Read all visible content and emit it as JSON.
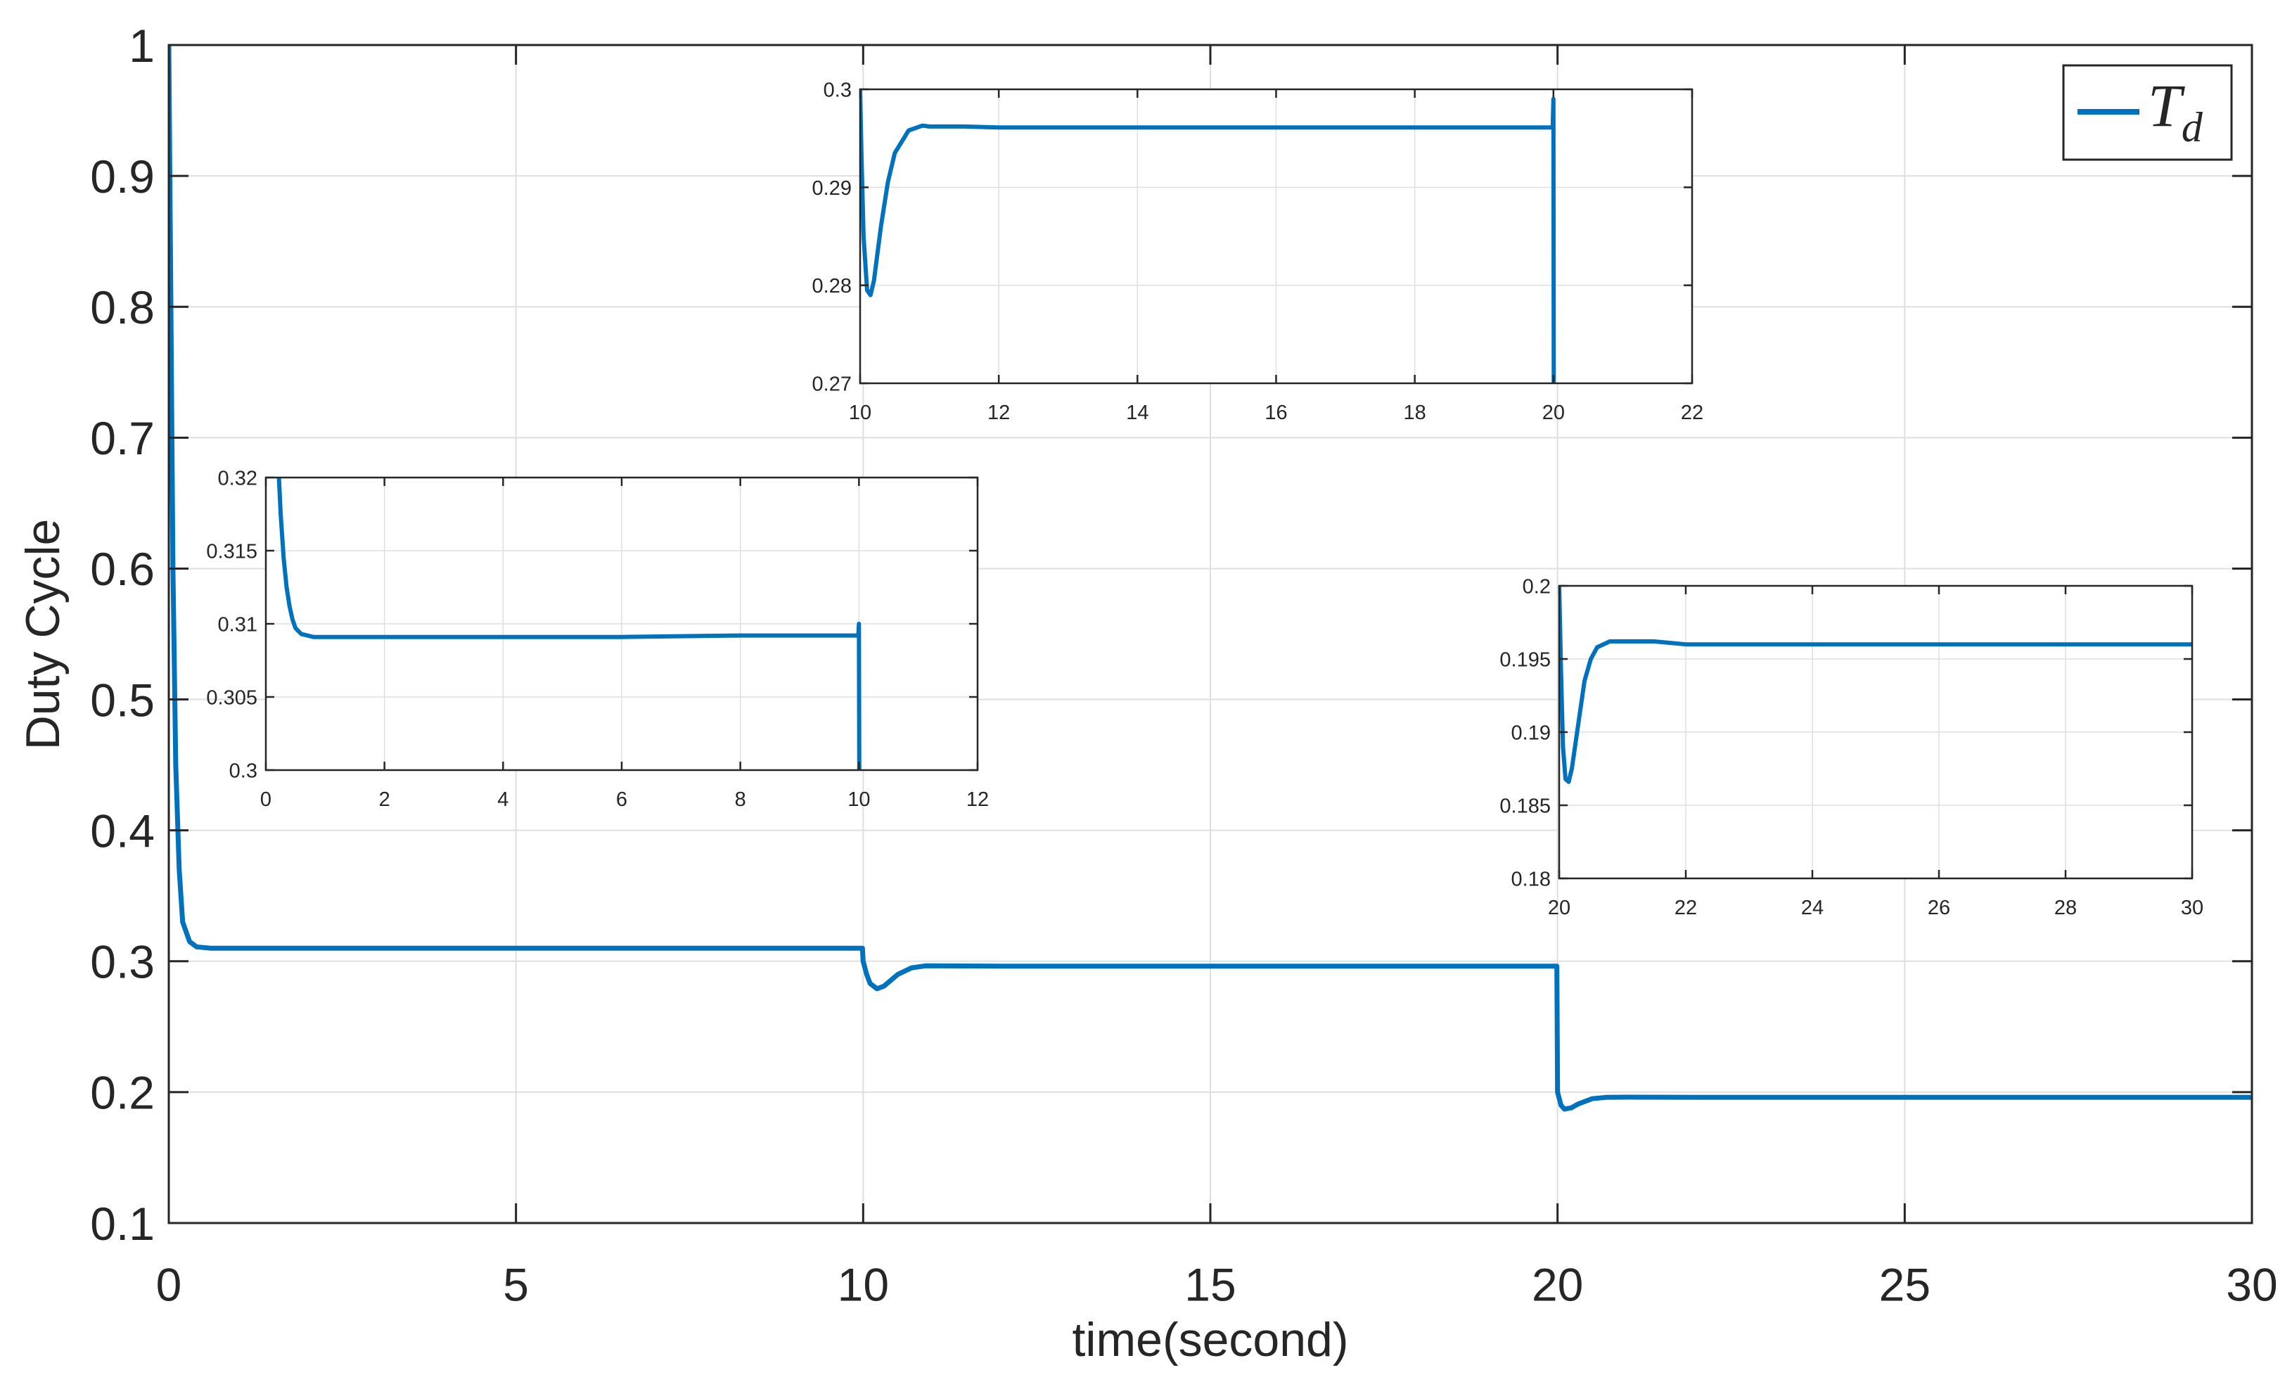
{
  "chart_data": [
    {
      "id": "main",
      "type": "line",
      "xlabel": "time(second)",
      "ylabel": "Duty Cycle",
      "xlim": [
        0,
        30
      ],
      "ylim": [
        0.1,
        1
      ],
      "xticks": [
        0,
        5,
        10,
        15,
        20,
        25,
        30
      ],
      "xtick_labels": [
        "0",
        "5",
        "10",
        "15",
        "20",
        "25",
        "30"
      ],
      "yticks": [
        0.1,
        0.2,
        0.3,
        0.4,
        0.5,
        0.6,
        0.7,
        0.8,
        0.9,
        1
      ],
      "ytick_labels": [
        "0.1",
        "0.2",
        "0.3",
        "0.4",
        "0.5",
        "0.6",
        "0.7",
        "0.8",
        "0.9",
        "1"
      ],
      "grid": true,
      "legend": {
        "placement": "top-right",
        "entries": [
          {
            "symbol": "T",
            "subscript": "d"
          }
        ]
      },
      "series": [
        {
          "color": "#0072BD",
          "x": [
            0,
            0.03,
            0.06,
            0.1,
            0.15,
            0.2,
            0.3,
            0.4,
            0.6,
            1,
            5,
            9.95,
            9.99,
            10,
            10.05,
            10.1,
            10.2,
            10.3,
            10.5,
            10.7,
            10.9,
            12,
            15,
            19.99,
            20,
            20.05,
            20.1,
            20.2,
            20.3,
            20.5,
            20.7,
            21,
            22,
            25,
            30
          ],
          "y": [
            1,
            0.8,
            0.6,
            0.45,
            0.37,
            0.33,
            0.315,
            0.311,
            0.31,
            0.31,
            0.31,
            0.31,
            0.31,
            0.3,
            0.29,
            0.283,
            0.279,
            0.281,
            0.29,
            0.295,
            0.2965,
            0.2962,
            0.2962,
            0.2962,
            0.2,
            0.19,
            0.187,
            0.188,
            0.191,
            0.195,
            0.196,
            0.1962,
            0.196,
            0.196,
            0.196
          ]
        }
      ]
    },
    {
      "id": "inset-top",
      "type": "line",
      "xlim": [
        10,
        22
      ],
      "ylim": [
        0.27,
        0.3
      ],
      "xticks": [
        10,
        12,
        14,
        16,
        18,
        20,
        22
      ],
      "xtick_labels": [
        "10",
        "12",
        "14",
        "16",
        "18",
        "20",
        "22"
      ],
      "yticks": [
        0.27,
        0.28,
        0.29,
        0.3
      ],
      "ytick_labels": [
        "0.27",
        "0.28",
        "0.29",
        "0.3"
      ],
      "grid": true,
      "series": [
        {
          "color": "#0072BD",
          "x": [
            10,
            10.02,
            10.05,
            10.1,
            10.15,
            10.2,
            10.3,
            10.4,
            10.5,
            10.7,
            10.9,
            11,
            11.5,
            12,
            14,
            16,
            18,
            19.99,
            20,
            20.005
          ],
          "y": [
            0.3,
            0.293,
            0.285,
            0.2795,
            0.279,
            0.2805,
            0.286,
            0.2905,
            0.2935,
            0.2958,
            0.2963,
            0.2962,
            0.2962,
            0.2961,
            0.2961,
            0.2961,
            0.2961,
            0.2961,
            0.299,
            0.27
          ]
        }
      ]
    },
    {
      "id": "inset-left",
      "type": "line",
      "xlim": [
        0,
        12
      ],
      "ylim": [
        0.3,
        0.32
      ],
      "xticks": [
        0,
        2,
        4,
        6,
        8,
        10,
        12
      ],
      "xtick_labels": [
        "0",
        "2",
        "4",
        "6",
        "8",
        "10",
        "12"
      ],
      "yticks": [
        0.3,
        0.305,
        0.31,
        0.315,
        0.32
      ],
      "ytick_labels": [
        "0.3",
        "0.305",
        "0.31",
        "0.315",
        "0.32"
      ],
      "grid": true,
      "series": [
        {
          "color": "#0072BD",
          "x": [
            0.22,
            0.25,
            0.3,
            0.35,
            0.4,
            0.45,
            0.5,
            0.6,
            0.7,
            0.8,
            1,
            2,
            4,
            6,
            8,
            9.99,
            10,
            10.005
          ],
          "y": [
            0.32,
            0.3175,
            0.3145,
            0.3125,
            0.3112,
            0.3103,
            0.3097,
            0.3093,
            0.3092,
            0.3091,
            0.3091,
            0.3091,
            0.3091,
            0.3091,
            0.3092,
            0.3092,
            0.31,
            0.3
          ]
        }
      ]
    },
    {
      "id": "inset-right",
      "type": "line",
      "xlim": [
        20,
        30
      ],
      "ylim": [
        0.18,
        0.2
      ],
      "xticks": [
        20,
        22,
        24,
        26,
        28,
        30
      ],
      "xtick_labels": [
        "20",
        "22",
        "24",
        "26",
        "28",
        "30"
      ],
      "yticks": [
        0.18,
        0.185,
        0.19,
        0.195,
        0.2
      ],
      "ytick_labels": [
        "0.18",
        "0.185",
        "0.19",
        "0.195",
        "0.2"
      ],
      "grid": true,
      "series": [
        {
          "color": "#0072BD",
          "x": [
            20,
            20.03,
            20.06,
            20.1,
            20.15,
            20.2,
            20.3,
            20.4,
            20.5,
            20.6,
            20.8,
            21,
            21.5,
            22,
            24,
            26,
            28,
            30
          ],
          "y": [
            0.2,
            0.194,
            0.189,
            0.1868,
            0.1866,
            0.1875,
            0.1905,
            0.1935,
            0.195,
            0.1958,
            0.1962,
            0.1962,
            0.1962,
            0.196,
            0.196,
            0.196,
            0.196,
            0.196
          ]
        }
      ]
    }
  ]
}
